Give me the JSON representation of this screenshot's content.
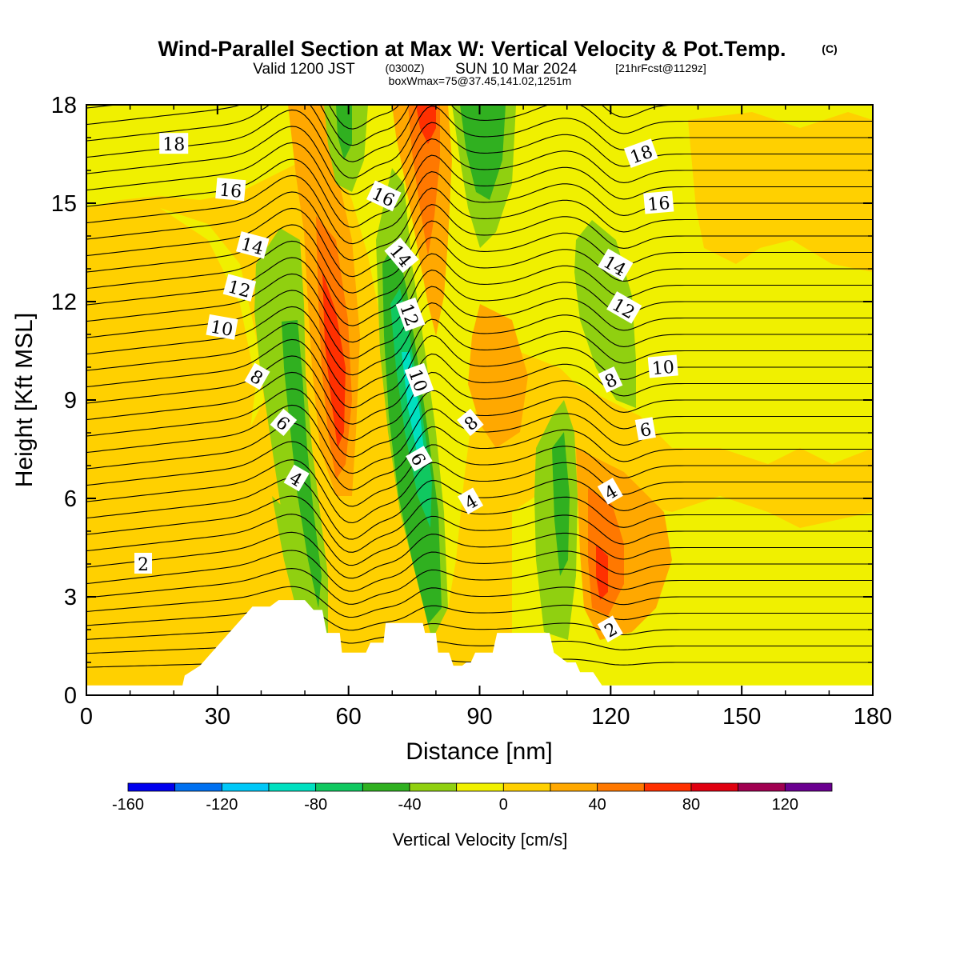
{
  "title": {
    "main": "Wind-Parallel Section at Max W: Vertical Velocity & Pot.Temp.",
    "copyright": "(C)",
    "valid_prefix": "Valid 1200 JST",
    "utc": "(0300Z)",
    "valid_date": "SUN 10 Mar 2024",
    "forecast": "[21hrFcst@1129z]",
    "boxinfo": "boxWmax=75@37.45,141.02,1251m"
  },
  "chart_data": {
    "type": "heatmap",
    "xlabel": "Distance [nm]",
    "ylabel": "Height [Kft MSL]",
    "xlim": [
      0,
      180
    ],
    "ylim": [
      0,
      18
    ],
    "x_ticks": [
      0,
      30,
      60,
      90,
      120,
      150,
      180
    ],
    "y_ticks": [
      0,
      3,
      6,
      9,
      12,
      15,
      18
    ],
    "colorbar": {
      "title": "Vertical Velocity [cm/s]",
      "levels": [
        -160,
        -140,
        -120,
        -100,
        -80,
        -60,
        -40,
        -20,
        0,
        20,
        40,
        60,
        80,
        100,
        120,
        140
      ],
      "tick_values": [
        -160,
        -120,
        -80,
        -40,
        0,
        40,
        80,
        120
      ],
      "colors": [
        "#0000ee",
        "#0070f0",
        "#00c8f8",
        "#00e0c0",
        "#10c860",
        "#30b020",
        "#90d010",
        "#f0f000",
        "#ffd000",
        "#ffa800",
        "#ff7800",
        "#ff3000",
        "#e00010",
        "#a00050",
        "#6a0090"
      ]
    },
    "vertical_velocity_features": [
      {
        "x": 47,
        "y": 10,
        "w": -65,
        "note": "downdraft band"
      },
      {
        "x": 58,
        "y": 10,
        "w": 95,
        "note": "updraft band"
      },
      {
        "x": 75,
        "y": 9,
        "w": -110,
        "note": "downdraft band"
      },
      {
        "x": 79,
        "y": 17.5,
        "w": 90,
        "note": "updraft band"
      },
      {
        "x": 90,
        "y": 16.5,
        "w": -60,
        "note": "downdraft band"
      },
      {
        "x": 120,
        "y": 3.5,
        "w": 85,
        "note": "updraft"
      },
      {
        "x": 112,
        "y": 5,
        "w": -45,
        "note": "downdraft"
      },
      {
        "x": 123,
        "y": 12,
        "w": -40,
        "note": "downdraft"
      }
    ],
    "potential_temperature_contours": {
      "labels": [
        "2",
        "4",
        "6",
        "8",
        "10",
        "12",
        "14",
        "16",
        "18"
      ]
    },
    "terrain_profile": [
      [
        0,
        0.3
      ],
      [
        22,
        0.3
      ],
      [
        22.5,
        0.6
      ],
      [
        26,
        0.9
      ],
      [
        28,
        1.2
      ],
      [
        30,
        1.5
      ],
      [
        32,
        1.8
      ],
      [
        34,
        2.1
      ],
      [
        36,
        2.4
      ],
      [
        38,
        2.7
      ],
      [
        40,
        2.7
      ],
      [
        42,
        2.7
      ],
      [
        44,
        2.9
      ],
      [
        46,
        2.9
      ],
      [
        48,
        2.9
      ],
      [
        50,
        2.9
      ],
      [
        52,
        2.6
      ],
      [
        54,
        2.6
      ],
      [
        55,
        1.9
      ],
      [
        58,
        1.9
      ],
      [
        58.5,
        1.3
      ],
      [
        62,
        1.3
      ],
      [
        64,
        1.3
      ],
      [
        65,
        1.6
      ],
      [
        68,
        1.6
      ],
      [
        68.5,
        2.2
      ],
      [
        74,
        2.2
      ],
      [
        77,
        2.2
      ],
      [
        77.5,
        1.9
      ],
      [
        80,
        1.9
      ],
      [
        80.5,
        1.3
      ],
      [
        83,
        1.3
      ],
      [
        84,
        0.9
      ],
      [
        86,
        0.9
      ],
      [
        87,
        1.0
      ],
      [
        88,
        1.0
      ],
      [
        89,
        1.3
      ],
      [
        93,
        1.3
      ],
      [
        94,
        1.9
      ],
      [
        102,
        1.9
      ],
      [
        106,
        1.9
      ],
      [
        107,
        1.3
      ],
      [
        110,
        1.0
      ],
      [
        112,
        1.0
      ],
      [
        113,
        0.7
      ],
      [
        116,
        0.7
      ],
      [
        117,
        0.5
      ],
      [
        118,
        0.3
      ],
      [
        180,
        0.3
      ]
    ]
  }
}
